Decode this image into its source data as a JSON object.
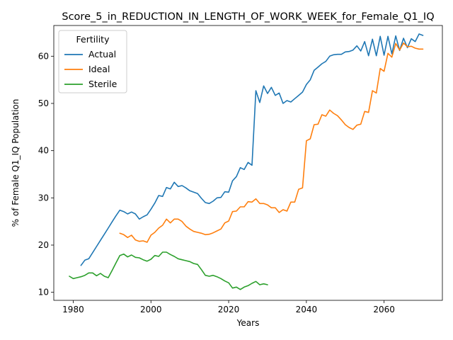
{
  "chart_data": {
    "type": "line",
    "title": "Score_5_in_REDUCTION_IN_LENGTH_OF_WORK_WEEK_for_Female_Q1_IQ",
    "xlabel": "Years",
    "ylabel": "% of Female Q1_IQ Population",
    "xlim": [
      1975,
      2075
    ],
    "ylim": [
      8.3,
      66.5
    ],
    "xticks": [
      1980,
      2000,
      2020,
      2040,
      2060
    ],
    "yticks": [
      10,
      20,
      30,
      40,
      50,
      60
    ],
    "grid": false,
    "legend": {
      "title": "Fertility",
      "placement": "top-left"
    },
    "series": [
      {
        "name": "Actual",
        "color": "#1f77b4",
        "x": [
          1982,
          1983,
          1984,
          1985,
          1986,
          1987,
          1988,
          1989,
          1990,
          1991,
          1992,
          1993,
          1994,
          1995,
          1996,
          1997,
          1998,
          1999,
          2000,
          2001,
          2002,
          2003,
          2004,
          2005,
          2006,
          2007,
          2008,
          2009,
          2010,
          2011,
          2012,
          2013,
          2014,
          2015,
          2016,
          2017,
          2018,
          2019,
          2020,
          2021,
          2022,
          2023,
          2024,
          2025,
          2026,
          2027,
          2028,
          2029,
          2030,
          2031,
          2032,
          2033,
          2034,
          2035,
          2036,
          2037,
          2038,
          2039,
          2040,
          2041,
          2042,
          2043,
          2044,
          2045,
          2046,
          2047,
          2048,
          2049,
          2050,
          2051,
          2052,
          2053,
          2054,
          2055,
          2056,
          2057,
          2058,
          2059,
          2060,
          2061,
          2062,
          2063,
          2064,
          2065,
          2066,
          2067,
          2068,
          2069,
          2070
        ],
        "y": [
          15.7,
          16.8,
          17.1,
          18.4,
          19.7,
          21.0,
          22.3,
          23.6,
          24.9,
          26.2,
          27.4,
          27.1,
          26.6,
          27.0,
          26.6,
          25.5,
          26.0,
          26.4,
          27.6,
          28.9,
          30.5,
          30.3,
          32.2,
          31.9,
          33.3,
          32.4,
          32.6,
          32.1,
          31.5,
          31.2,
          30.9,
          29.9,
          29.0,
          28.8,
          29.3,
          30.0,
          30.1,
          31.3,
          31.2,
          33.6,
          34.5,
          36.4,
          36.0,
          37.5,
          36.9,
          52.7,
          50.2,
          53.7,
          52.1,
          53.4,
          51.7,
          52.2,
          50.0,
          50.6,
          50.3,
          51.0,
          51.7,
          52.4,
          54.0,
          55.0,
          57.0,
          57.7,
          58.4,
          58.9,
          60.0,
          60.3,
          60.4,
          60.4,
          60.9,
          61.0,
          61.3,
          62.2,
          61.1,
          63.1,
          60.1,
          63.6,
          60.1,
          64.2,
          60.2,
          64.2,
          60.5,
          64.3,
          61.2,
          63.8,
          61.8,
          63.7,
          63.1,
          64.7,
          64.4
        ]
      },
      {
        "name": "Ideal",
        "color": "#ff7f0e",
        "x": [
          1992,
          1993,
          1994,
          1995,
          1996,
          1997,
          1998,
          1999,
          2000,
          2001,
          2002,
          2003,
          2004,
          2005,
          2006,
          2007,
          2008,
          2009,
          2010,
          2011,
          2012,
          2013,
          2014,
          2015,
          2016,
          2017,
          2018,
          2019,
          2020,
          2021,
          2022,
          2023,
          2024,
          2025,
          2026,
          2027,
          2028,
          2029,
          2030,
          2031,
          2032,
          2033,
          2034,
          2035,
          2036,
          2037,
          2038,
          2039,
          2040,
          2041,
          2042,
          2043,
          2044,
          2045,
          2046,
          2047,
          2048,
          2049,
          2050,
          2051,
          2052,
          2053,
          2054,
          2055,
          2056,
          2057,
          2058,
          2059,
          2060,
          2061,
          2062,
          2063,
          2064,
          2065,
          2066,
          2067,
          2068,
          2069,
          2070
        ],
        "y": [
          22.5,
          22.2,
          21.6,
          22.1,
          21.1,
          20.8,
          20.9,
          20.6,
          22.1,
          22.7,
          23.6,
          24.2,
          25.5,
          24.7,
          25.5,
          25.5,
          25.0,
          24.0,
          23.4,
          22.9,
          22.7,
          22.5,
          22.2,
          22.3,
          22.6,
          23.0,
          23.4,
          24.7,
          25.1,
          27.1,
          27.2,
          28.1,
          28.1,
          29.2,
          29.1,
          29.8,
          28.8,
          28.8,
          28.5,
          27.9,
          27.9,
          26.9,
          27.5,
          27.2,
          29.1,
          29.1,
          31.8,
          32.1,
          42.1,
          42.5,
          45.5,
          45.6,
          47.6,
          47.3,
          48.6,
          47.9,
          47.4,
          46.5,
          45.5,
          44.9,
          44.5,
          45.4,
          45.6,
          48.3,
          48.1,
          52.7,
          52.2,
          57.4,
          56.8,
          60.6,
          59.8,
          62.7,
          61.3,
          62.8,
          62.0,
          62.1,
          61.7,
          61.5,
          61.5
        ]
      },
      {
        "name": "Sterile",
        "color": "#2ca02c",
        "x": [
          1979,
          1980,
          1981,
          1982,
          1983,
          1984,
          1985,
          1986,
          1987,
          1988,
          1989,
          1990,
          1991,
          1992,
          1993,
          1994,
          1995,
          1996,
          1997,
          1998,
          1999,
          2000,
          2001,
          2002,
          2003,
          2004,
          2005,
          2006,
          2007,
          2008,
          2009,
          2010,
          2011,
          2012,
          2013,
          2014,
          2015,
          2016,
          2017,
          2018,
          2019,
          2020,
          2021,
          2022,
          2023,
          2024,
          2025,
          2026,
          2027,
          2028,
          2029,
          2030
        ],
        "y": [
          13.4,
          12.9,
          13.1,
          13.3,
          13.6,
          14.1,
          14.1,
          13.5,
          14.0,
          13.4,
          13.1,
          14.6,
          16.2,
          17.8,
          18.1,
          17.5,
          17.9,
          17.4,
          17.3,
          16.9,
          16.6,
          17.0,
          17.8,
          17.6,
          18.5,
          18.5,
          18.0,
          17.6,
          17.1,
          16.9,
          16.7,
          16.5,
          16.1,
          15.9,
          14.8,
          13.6,
          13.4,
          13.6,
          13.3,
          12.9,
          12.4,
          12.0,
          10.9,
          11.1,
          10.6,
          11.1,
          11.4,
          11.9,
          12.3,
          11.6,
          11.8,
          11.6
        ]
      }
    ]
  }
}
